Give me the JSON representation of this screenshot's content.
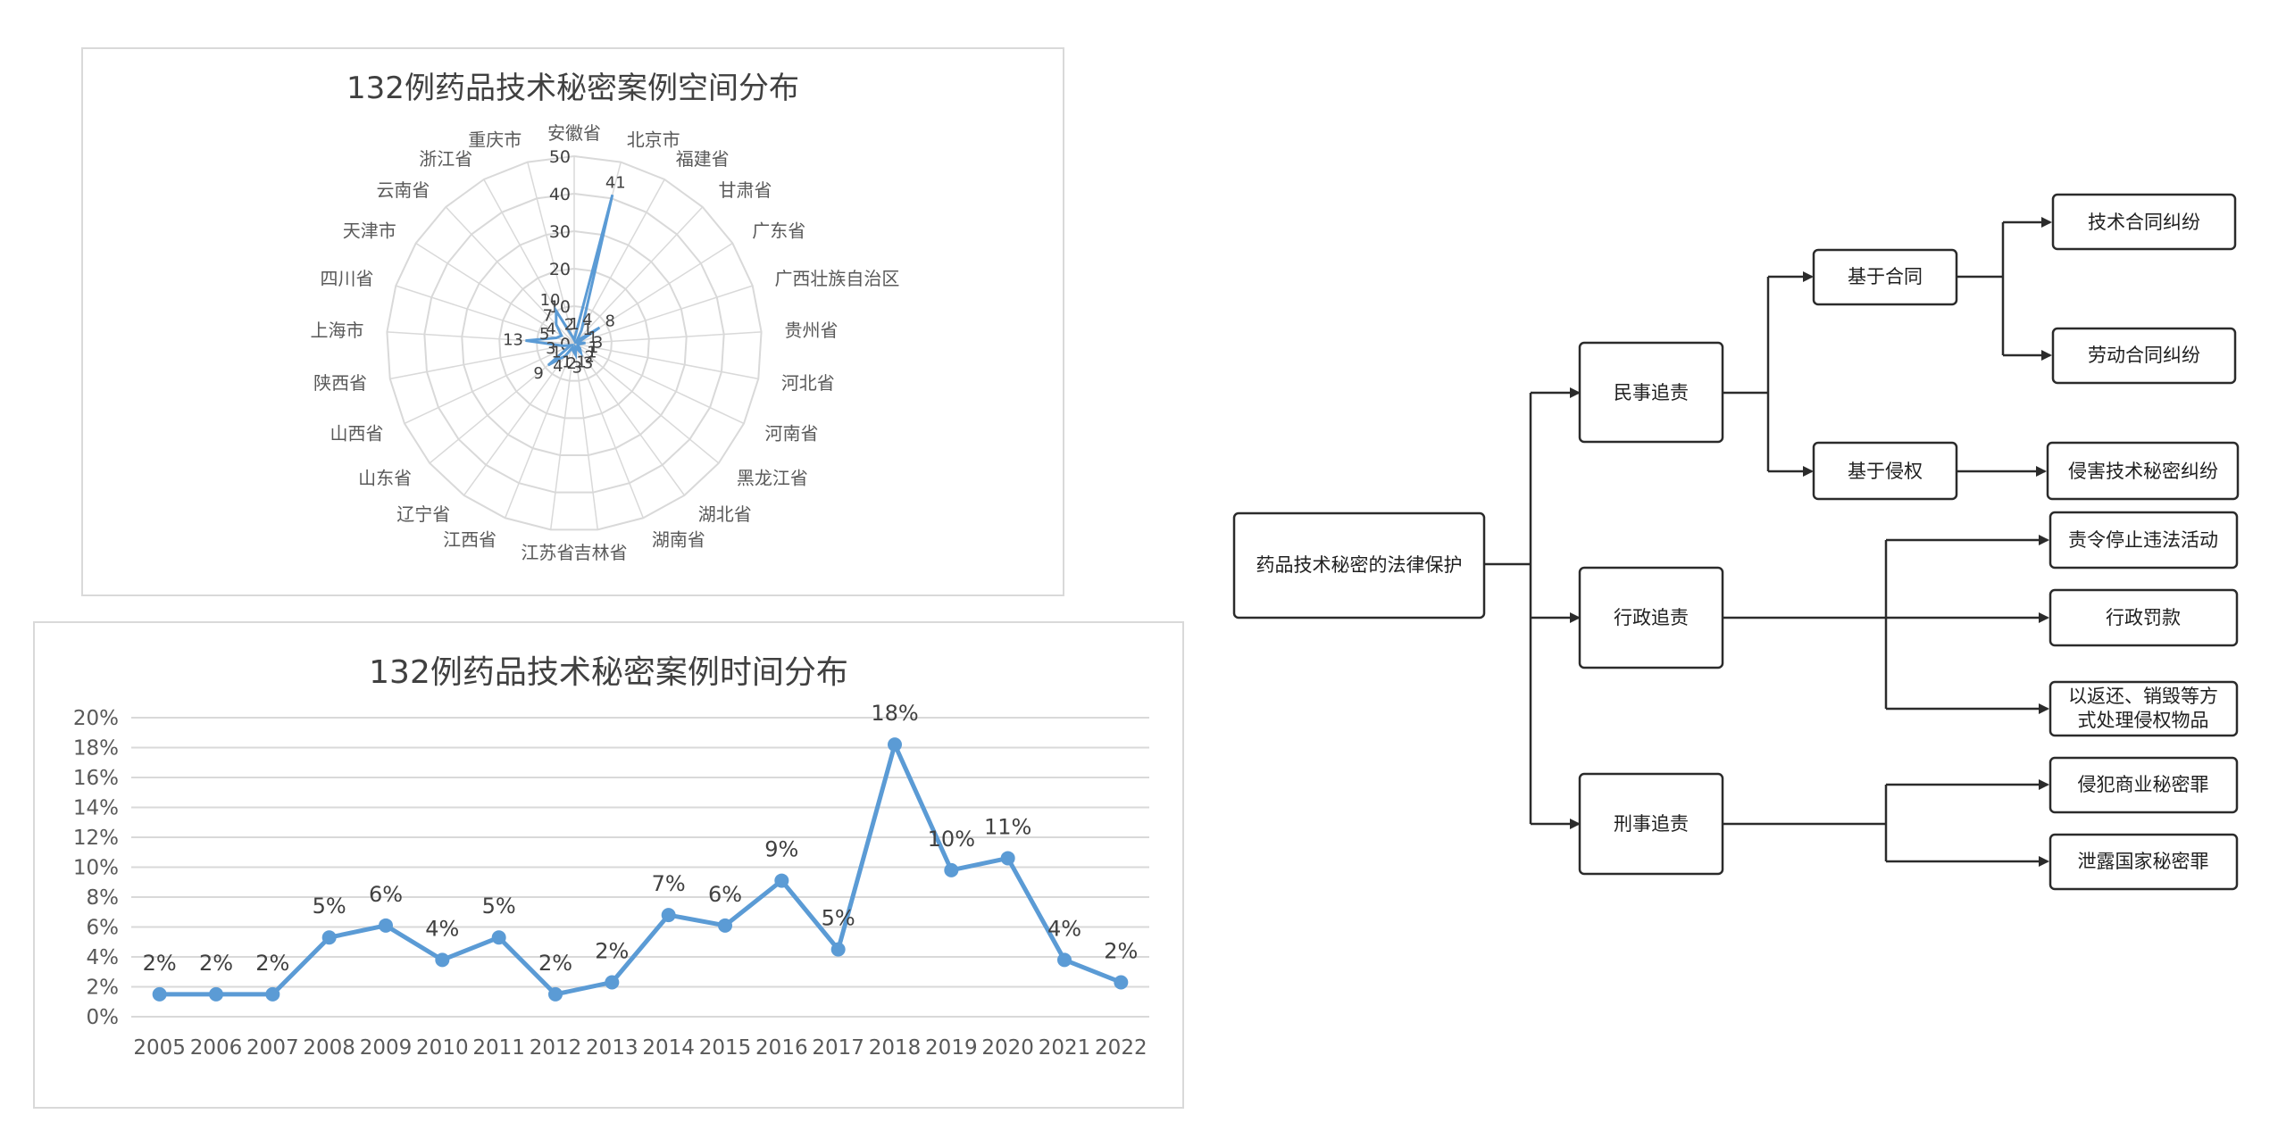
{
  "chart_data": [
    {
      "type": "radar",
      "title": "132例药品技术秘密案例空间分布",
      "axis_ticks": [
        10,
        20,
        30,
        40,
        50
      ],
      "tick_zero": "0",
      "rmax": 50,
      "grid": true,
      "categories": [
        "安徽省",
        "北京市",
        "福建省",
        "甘肃省",
        "广东省",
        "广西壮族自治区",
        "贵州省",
        "河北省",
        "河南省",
        "黑龙江省",
        "湖北省",
        "湖南省",
        "吉林省",
        "江苏省",
        "江西省",
        "辽宁省",
        "山东省",
        "山西省",
        "陕西省",
        "上海市",
        "四川省",
        "天津市",
        "云南省",
        "浙江省",
        "重庆市"
      ],
      "values": [
        1,
        41,
        4,
        1,
        8,
        1,
        3,
        1,
        1,
        2,
        3,
        1,
        3,
        2,
        1,
        4,
        9,
        1,
        3,
        13,
        5,
        4,
        7,
        10,
        2
      ],
      "series_color": "#5b9bd5"
    },
    {
      "type": "line",
      "title": "132例药品技术秘密案例时间分布",
      "categories": [
        "2005",
        "2006",
        "2007",
        "2008",
        "2009",
        "2010",
        "2011",
        "2012",
        "2013",
        "2014",
        "2015",
        "2016",
        "2017",
        "2018",
        "2019",
        "2020",
        "2021",
        "2022"
      ],
      "values": [
        1.5,
        1.5,
        1.5,
        5.3,
        6.1,
        3.8,
        5.3,
        1.5,
        2.3,
        6.8,
        6.1,
        9.1,
        4.5,
        18.2,
        9.8,
        10.6,
        3.8,
        2.3
      ],
      "data_labels": [
        "2%",
        "2%",
        "2%",
        "5%",
        "6%",
        "4%",
        "5%",
        "2%",
        "2%",
        "7%",
        "6%",
        "9%",
        "5%",
        "18%",
        "10%",
        "11%",
        "4%",
        "2%"
      ],
      "y_ticks": [
        "0%",
        "2%",
        "4%",
        "6%",
        "8%",
        "10%",
        "12%",
        "14%",
        "16%",
        "18%",
        "20%"
      ],
      "ylim": [
        0,
        20
      ],
      "grid": true,
      "series_color": "#5b9bd5"
    }
  ],
  "flowchart": {
    "root": "药品技术秘密的法律保护",
    "branches": {
      "civil": "民事追责",
      "admin": "行政追责",
      "criminal": "刑事追责"
    },
    "civil_sub": {
      "contract": "基于合同",
      "tort": "基于侵权"
    },
    "leaves": {
      "tech_contract": "技术合同纠纷",
      "labor_contract": "劳动合同纠纷",
      "infringe": "侵害技术秘密纠纷",
      "stop": "责令停止违法活动",
      "fine": "行政罚款",
      "dispose_1": "以返还、销毁等方",
      "dispose_2": "式处理侵权物品",
      "crime_trade": "侵犯商业秘密罪",
      "crime_state": "泄露国家秘密罪"
    },
    "line_color": "#2b2b2b"
  }
}
